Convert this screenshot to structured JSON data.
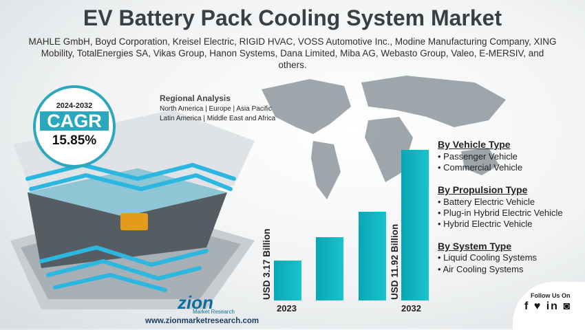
{
  "title": "EV Battery Pack Cooling System Market",
  "companies": "MAHLE GmbH, Boyd Corporation, Kreisel Electric, RIGID HVAC, VOSS Automotive Inc., Modine Manufacturing Company, XING Mobility, TotalEnergies SA, Vikas Group, Hanon Systems, Dana Limited, Miba AG, Webasto Group, Valeo, E-MERSIV, and others.",
  "regional": {
    "title": "Regional Analysis",
    "line1": "North America | Europe | Asia Pacific",
    "line2": "Latin America | Middle East and Africa"
  },
  "cagr": {
    "period": "2024-2032",
    "label": "CAGR",
    "value": "15.85%"
  },
  "bars": {
    "values": [
      3.17,
      5.0,
      7.0,
      11.92
    ],
    "year_start": "2023",
    "year_end": "2032",
    "label_start": "USD 3.17 Billion",
    "label_end": "USD 11.92 Billion",
    "color": "#14b5c2"
  },
  "segments": {
    "vehicle": {
      "title": "By Vehicle Type",
      "items": [
        "Passenger Vehicle",
        "Commercial Vehicle"
      ]
    },
    "propulsion": {
      "title": "By Propulsion Type ",
      "items": [
        "Battery Electric Vehicle",
        "Plug-in Hybrid Electric Vehicle",
        "Hybrid Electric Vehicle"
      ]
    },
    "system": {
      "title": "By System Type ",
      "items": [
        "Liquid Cooling Systems",
        "Air Cooling Systems"
      ]
    }
  },
  "follow": "Follow Us On",
  "social_icons": [
    "facebook-icon",
    "twitter-icon",
    "linkedin-icon",
    "instagram-icon"
  ],
  "logo": {
    "name": "zion",
    "sub": "Market Research"
  },
  "url": "www.zionmarketresearch.com"
}
